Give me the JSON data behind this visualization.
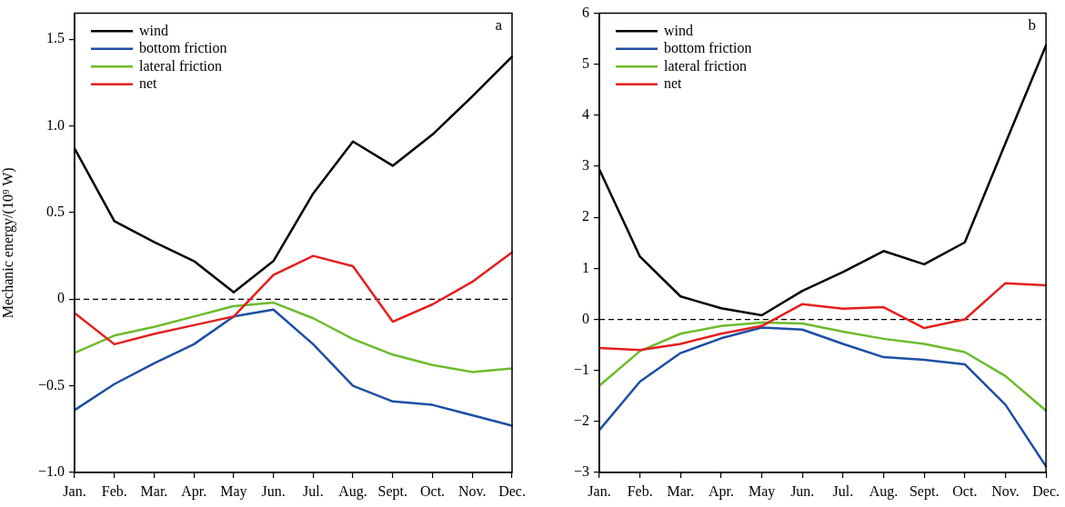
{
  "chart_data": [
    {
      "type": "line",
      "categories": [
        "Jan.",
        "Feb.",
        "Mar.",
        "Apr.",
        "May",
        "Jun.",
        "Jul.",
        "Aug.",
        "Sept.",
        "Oct.",
        "Nov.",
        "Dec."
      ],
      "series": [
        {
          "name": "wind",
          "color": "#000000",
          "values": [
            0.87,
            0.45,
            0.33,
            0.22,
            0.04,
            0.22,
            0.61,
            0.91,
            0.77,
            0.95,
            1.17,
            1.4
          ]
        },
        {
          "name": "bottom friction",
          "color": "#1d4fa3",
          "values": [
            -0.64,
            -0.49,
            -0.37,
            -0.26,
            -0.1,
            -0.06,
            -0.26,
            -0.5,
            -0.59,
            -0.61,
            -0.67,
            -0.73
          ]
        },
        {
          "name": "lateral friction",
          "color": "#6cbb2c",
          "values": [
            -0.31,
            -0.21,
            -0.16,
            -0.1,
            -0.04,
            -0.02,
            -0.11,
            -0.23,
            -0.32,
            -0.38,
            -0.42,
            -0.4
          ]
        },
        {
          "name": "net",
          "color": "#e41f1f",
          "values": [
            -0.08,
            -0.26,
            -0.2,
            -0.15,
            -0.1,
            0.14,
            0.25,
            0.19,
            -0.13,
            -0.03,
            0.1,
            0.27
          ]
        }
      ],
      "ylabel": "Mechanic energy/(10⁹ W)",
      "ylim": [
        -1.0,
        1.65
      ],
      "yticks": [
        {
          "value": -1,
          "label": "−1.0"
        },
        {
          "value": -0.5,
          "label": "−0.5"
        },
        0,
        0.5,
        {
          "value": 1,
          "label": "1.0"
        },
        1.5
      ],
      "ref_lines": [
        {
          "axis": "y",
          "value": 0,
          "color": "#000000",
          "line_style": "dashed"
        }
      ],
      "annotations": [
        "a"
      ],
      "legend": "top left",
      "marker": "none"
    },
    {
      "type": "line",
      "categories": [
        "Jan.",
        "Feb.",
        "Mar.",
        "Apr.",
        "May",
        "Jun.",
        "Jul.",
        "Aug.",
        "Sept.",
        "Oct.",
        "Nov.",
        "Dec."
      ],
      "series": [
        {
          "name": "wind",
          "color": "#000000",
          "values": [
            2.94,
            1.23,
            0.45,
            0.22,
            0.08,
            0.56,
            0.93,
            1.34,
            1.08,
            1.51,
            3.45,
            5.37
          ]
        },
        {
          "name": "bottom friction",
          "color": "#1d4fa3",
          "values": [
            -2.17,
            -1.22,
            -0.66,
            -0.37,
            -0.16,
            -0.2,
            -0.48,
            -0.74,
            -0.79,
            -0.88,
            -1.67,
            -2.88
          ]
        },
        {
          "name": "lateral friction",
          "color": "#6cbb2c",
          "values": [
            -1.3,
            -0.62,
            -0.28,
            -0.13,
            -0.06,
            -0.08,
            -0.24,
            -0.38,
            -0.48,
            -0.64,
            -1.11,
            -1.79
          ]
        },
        {
          "name": "net",
          "color": "#e41f1f",
          "values": [
            -0.56,
            -0.6,
            -0.48,
            -0.28,
            -0.13,
            0.3,
            0.21,
            0.24,
            -0.17,
            0.0,
            0.71,
            0.67
          ]
        }
      ],
      "ylim": [
        -3,
        6
      ],
      "yticks": [
        {
          "value": -3,
          "label": "−3"
        },
        {
          "value": -2,
          "label": "−2"
        },
        {
          "value": -1,
          "label": "−1"
        },
        0,
        1,
        2,
        3,
        4,
        5,
        6
      ],
      "ref_lines": [
        {
          "axis": "y",
          "value": 0,
          "color": "#000000",
          "line_style": "dashed"
        }
      ],
      "annotations": [
        "b"
      ],
      "legend": "top left",
      "marker": "none"
    }
  ]
}
